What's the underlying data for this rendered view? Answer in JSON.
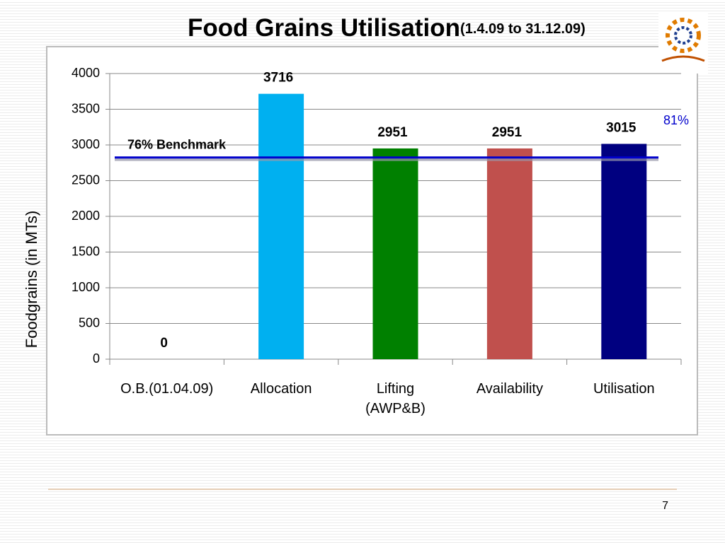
{
  "chart_data": {
    "type": "bar",
    "title": "Food Grains Utilisation",
    "subtitle": "(1.4.09 to 31.12.09)",
    "y_label": "Foodgrains (in MTs)",
    "categories": [
      "O.B.(01.04.09)",
      "Allocation",
      "Lifting\n(AWP&B)",
      "Availability",
      "Utilisation"
    ],
    "values": [
      0,
      3716,
      2951,
      2951,
      3015
    ],
    "colors": [
      "#00b0f0",
      "#00b0f0",
      "#008000",
      "#c0504d",
      "#000080"
    ],
    "ylim": [
      0,
      4000
    ],
    "yticks": [
      0,
      500,
      1000,
      1500,
      2000,
      2500,
      3000,
      3500,
      4000
    ],
    "grid": true,
    "benchmark": {
      "value": 2824,
      "label": "76% Benchmark",
      "color": "#0000cc"
    },
    "annotation": "81%",
    "page_number": "7"
  }
}
